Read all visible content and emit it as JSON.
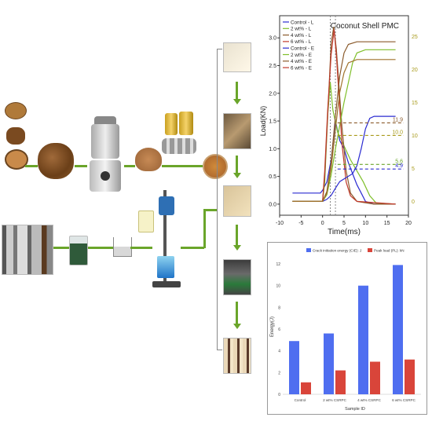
{
  "line_chart": {
    "title": "Coconut Shell PMC",
    "xlabel": "Time(ms)",
    "ylabel": "Load(KN)",
    "xticks": [
      "-10",
      "-5",
      "0",
      "5",
      "10",
      "15",
      "20"
    ],
    "yticks_left": [
      "0.0",
      "0.5",
      "1.0",
      "1.5",
      "2.0",
      "2.5",
      "3.0"
    ],
    "yticks_right": [
      "0",
      "5",
      "10",
      "15",
      "20",
      "25"
    ],
    "legend": [
      "Control - L",
      "2 wt% - L",
      "4 wt% - L",
      "6 wt% - L",
      "Control - E",
      "2 wt% - E",
      "4 wt% - E",
      "6 wt% - E"
    ],
    "annotations": [
      "11.9",
      "10.0",
      "5.6",
      "4.9"
    ],
    "colors": {
      "control": "#2b2bd1",
      "w2": "#7fbf2a",
      "w4": "#8a5a2b",
      "w6": "#c0392b",
      "ann1": "#8a5a2b",
      "ann2": "#a89a1a",
      "ann3": "#6aa52a",
      "ann4": "#2b2bd1"
    }
  },
  "chart_data": {
    "type": "bar",
    "categories": [
      "Control",
      "2 wt% CSRPC",
      "4 wt% CSRPC",
      "6 wt% CSRPC"
    ],
    "series": [
      {
        "name": "Crack initiation energy (CIE): J",
        "values": [
          4.9,
          5.6,
          10.0,
          11.9
        ],
        "color": "#4f6ef0"
      },
      {
        "name": "Peak load (PL): kN",
        "values": [
          1.1,
          2.2,
          3.0,
          3.2
        ],
        "color": "#d9453a"
      }
    ],
    "xlabel": "Sample ID",
    "ylabel": "Energy(J)",
    "ylim": [
      0,
      12
    ],
    "yticks": [
      "0",
      "2",
      "4",
      "6",
      "8",
      "10",
      "12"
    ],
    "legend_position": "top"
  }
}
